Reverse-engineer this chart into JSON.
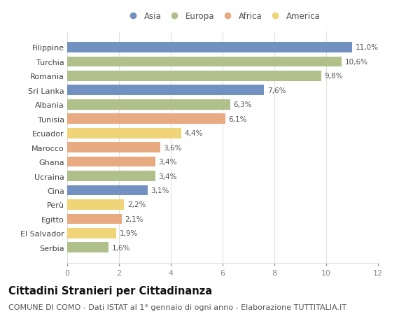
{
  "categories": [
    "Filippine",
    "Turchia",
    "Romania",
    "Sri Lanka",
    "Albania",
    "Tunisia",
    "Ecuador",
    "Marocco",
    "Ghana",
    "Ucraina",
    "Cina",
    "Perù",
    "Egitto",
    "El Salvador",
    "Serbia"
  ],
  "values": [
    11.0,
    10.6,
    9.8,
    7.6,
    6.3,
    6.1,
    4.4,
    3.6,
    3.4,
    3.4,
    3.1,
    2.2,
    2.1,
    1.9,
    1.6
  ],
  "labels": [
    "11,0%",
    "10,6%",
    "9,8%",
    "7,6%",
    "6,3%",
    "6,1%",
    "4,4%",
    "3,6%",
    "3,4%",
    "3,4%",
    "3,1%",
    "2,2%",
    "2,1%",
    "1,9%",
    "1,6%"
  ],
  "continents": [
    "Asia",
    "Europa",
    "Europa",
    "Asia",
    "Europa",
    "Africa",
    "America",
    "Africa",
    "Africa",
    "Europa",
    "Asia",
    "America",
    "Africa",
    "America",
    "Europa"
  ],
  "continent_colors": {
    "Asia": "#7191c0",
    "Europa": "#afc08a",
    "Africa": "#e8aa80",
    "America": "#f0d478"
  },
  "legend_order": [
    "Asia",
    "Europa",
    "Africa",
    "America"
  ],
  "xlim": [
    0,
    12
  ],
  "xticks": [
    0,
    2,
    4,
    6,
    8,
    10,
    12
  ],
  "bg_color": "#ffffff",
  "plot_bg_color": "#ffffff",
  "grid_color": "#e0e0e0",
  "title": "Cittadini Stranieri per Cittadinanza",
  "subtitle": "COMUNE DI COMO - Dati ISTAT al 1° gennaio di ogni anno - Elaborazione TUTTITALIA.IT",
  "title_fontsize": 10.5,
  "subtitle_fontsize": 8,
  "label_fontsize": 7.5,
  "tick_fontsize": 8,
  "legend_fontsize": 8.5,
  "bar_height": 0.72,
  "label_color": "#555555",
  "tick_color": "#888888",
  "ylabel_color": "#444444"
}
